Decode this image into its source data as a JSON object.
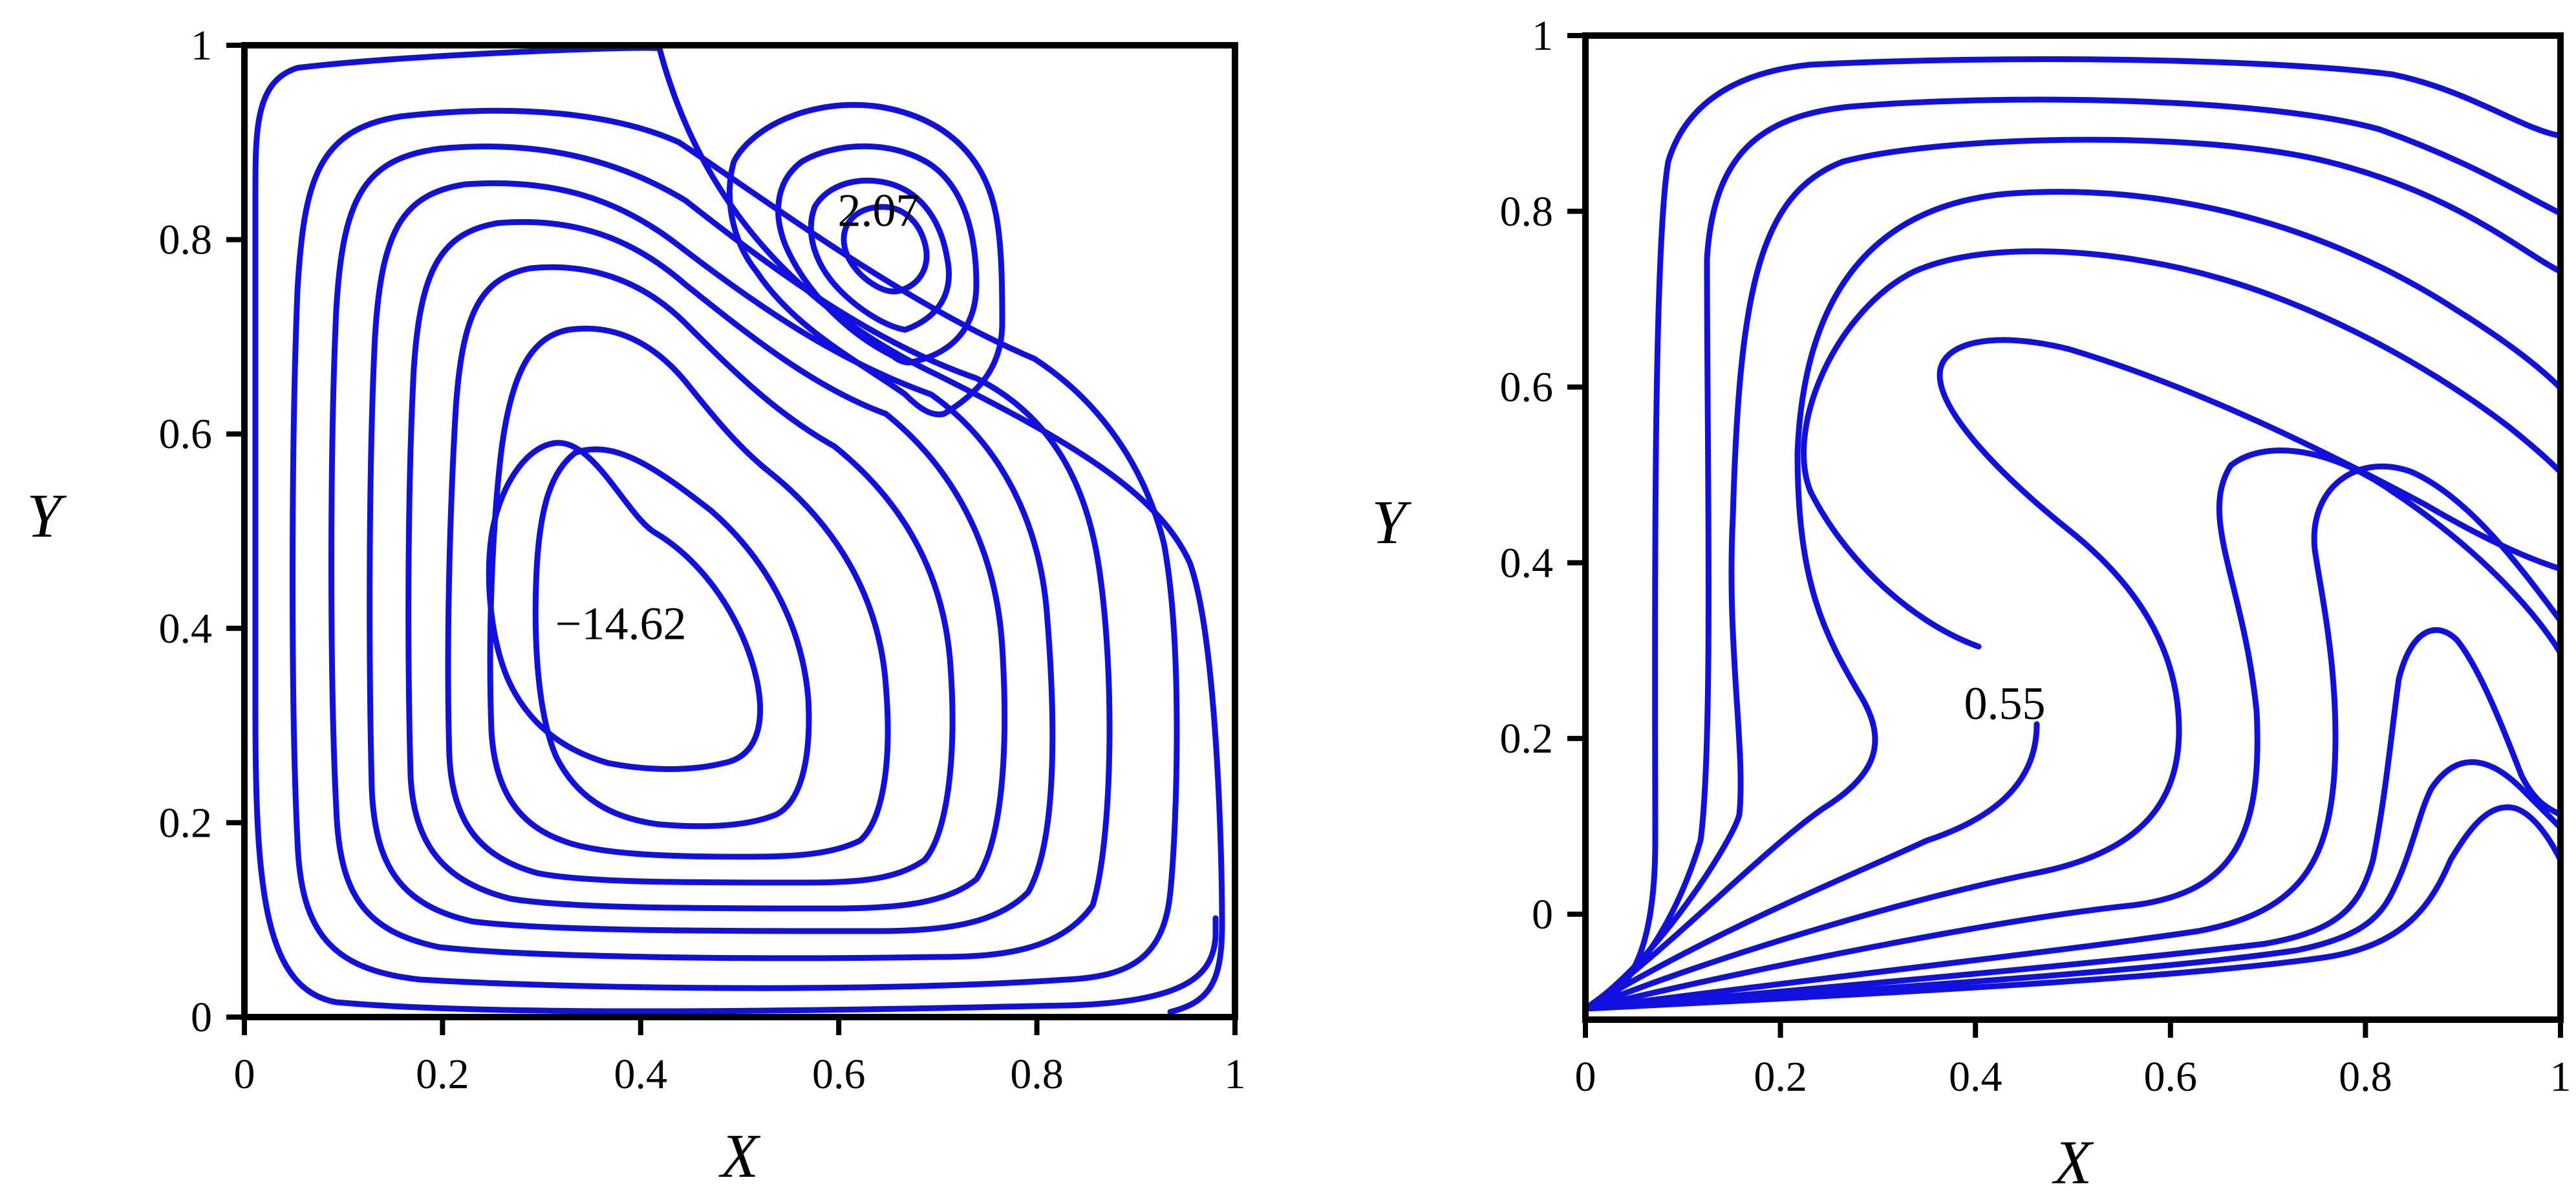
{
  "colors": {
    "contour": "#1010e0",
    "axis": "#000000"
  },
  "chart_data": [
    {
      "type": "contour",
      "title": "",
      "xlabel": "X",
      "ylabel": "Y",
      "xlim": [
        0,
        1
      ],
      "ylim": [
        0,
        1
      ],
      "xticks": [
        "0",
        "0.2",
        "0.4",
        "0.6",
        "0.8",
        "1"
      ],
      "yticks": [
        "0",
        "0.2",
        "0.4",
        "0.6",
        "0.8",
        "1"
      ],
      "grid": false,
      "annotations": [
        {
          "text": "2.07",
          "x": 0.64,
          "y": 0.83
        },
        {
          "text": "−14.62",
          "x": 0.38,
          "y": 0.405
        }
      ]
    },
    {
      "type": "contour",
      "title": "",
      "xlabel": "X",
      "ylabel": "Y",
      "xlim": [
        0,
        1
      ],
      "ylim": [
        -0.12,
        1
      ],
      "xticks": [
        "0",
        "0.2",
        "0.4",
        "0.6",
        "0.8",
        "1"
      ],
      "yticks": [
        "0",
        "0.2",
        "0.4",
        "0.6",
        "0.8",
        "1"
      ],
      "grid": false,
      "annotations": [
        {
          "text": "0.55",
          "x": 0.43,
          "y": 0.24
        }
      ]
    }
  ]
}
